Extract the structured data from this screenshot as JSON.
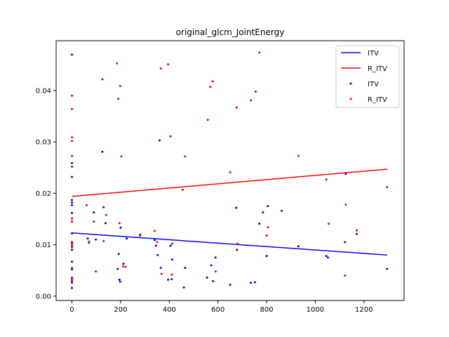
{
  "chart_data": {
    "type": "scatter",
    "title": "original_glcm_JointEnergy",
    "xlabel": "",
    "ylabel": "",
    "xlim": [
      -65,
      1365
    ],
    "ylim": [
      -0.00085,
      0.0497
    ],
    "xticks": [
      0,
      200,
      400,
      600,
      800,
      1000,
      1200
    ],
    "yticks": [
      0.0,
      0.01,
      0.02,
      0.03,
      0.04
    ],
    "ytick_labels": [
      "0.00",
      "0.01",
      "0.02",
      "0.03",
      "0.04"
    ],
    "grid": false,
    "legend_position": "top-right",
    "legend": [
      {
        "label": "ITV",
        "kind": "line",
        "color": "#0000ff"
      },
      {
        "label": "R_ITV",
        "kind": "line",
        "color": "#ff0000"
      },
      {
        "label": "ITV",
        "kind": "point",
        "color": "#0000ff"
      },
      {
        "label": "R_ITV",
        "kind": "point",
        "color": "#ff0000"
      }
    ],
    "lines": [
      {
        "name": "ITV",
        "color": "#0000ff",
        "x": [
          0,
          1295
        ],
        "y": [
          0.0123,
          0.008
        ]
      },
      {
        "name": "R_ITV",
        "color": "#ff0000",
        "x": [
          0,
          1295
        ],
        "y": [
          0.0194,
          0.0247
        ]
      }
    ],
    "series": [
      {
        "name": "ITV",
        "color": "#0000ff",
        "points": [
          [
            0,
            0.047
          ],
          [
            0,
            0.0259
          ],
          [
            0,
            0.0232
          ],
          [
            0,
            0.0187
          ],
          [
            0,
            0.0182
          ],
          [
            0,
            0.0177
          ],
          [
            0,
            0.0162
          ],
          [
            0,
            0.0145
          ],
          [
            0,
            0.0122
          ],
          [
            0,
            0.0105
          ],
          [
            0,
            0.009
          ],
          [
            0,
            0.0067
          ],
          [
            0,
            0.0052
          ],
          [
            0,
            0.0036
          ],
          [
            0,
            0.003
          ],
          [
            0,
            0.0026
          ],
          [
            0,
            0.0016
          ],
          [
            65,
            0.0112
          ],
          [
            70,
            0.0104
          ],
          [
            90,
            0.0163
          ],
          [
            98,
            0.011
          ],
          [
            125,
            0.0281
          ],
          [
            130,
            0.0173
          ],
          [
            138,
            0.0142
          ],
          [
            188,
            0.0053
          ],
          [
            192,
            0.0082
          ],
          [
            195,
            0.0032
          ],
          [
            198,
            0.0028
          ],
          [
            200,
            0.0133
          ],
          [
            212,
            0.0063
          ],
          [
            225,
            0.0112
          ],
          [
            280,
            0.0118
          ],
          [
            340,
            0.0109
          ],
          [
            345,
            0.0098
          ],
          [
            352,
            0.008
          ],
          [
            360,
            0.0303
          ],
          [
            365,
            0.0055
          ],
          [
            395,
            0.0032
          ],
          [
            405,
            0.0098
          ],
          [
            410,
            0.0033
          ],
          [
            412,
            0.0071
          ],
          [
            460,
            0.0017
          ],
          [
            465,
            0.0055
          ],
          [
            555,
            0.0036
          ],
          [
            572,
            0.006
          ],
          [
            580,
            0.0029
          ],
          [
            590,
            0.0075
          ],
          [
            650,
            0.0022
          ],
          [
            675,
            0.0172
          ],
          [
            678,
            0.009
          ],
          [
            735,
            0.0026
          ],
          [
            752,
            0.0027
          ],
          [
            770,
            0.0141
          ],
          [
            785,
            0.0163
          ],
          [
            800,
            0.0078
          ],
          [
            805,
            0.0175
          ],
          [
            862,
            0.0166
          ],
          [
            930,
            0.0097
          ],
          [
            1045,
            0.0078
          ],
          [
            1052,
            0.0075
          ],
          [
            1122,
            0.0105
          ],
          [
            1125,
            0.0238
          ],
          [
            1170,
            0.0121
          ],
          [
            1295,
            0.0053
          ]
        ]
      },
      {
        "name": "R_ITV",
        "color": "#ff0000",
        "points": [
          [
            0,
            0.039
          ],
          [
            0,
            0.0364
          ],
          [
            0,
            0.0309
          ],
          [
            0,
            0.0302
          ],
          [
            0,
            0.0273
          ],
          [
            0,
            0.0252
          ],
          [
            0,
            0.0151
          ],
          [
            0,
            0.0145
          ],
          [
            0,
            0.0102
          ],
          [
            0,
            0.0098
          ],
          [
            0,
            0.0095
          ],
          [
            0,
            0.0055
          ],
          [
            0,
            0.0035
          ],
          [
            0,
            0.0032
          ],
          [
            60,
            0.0177
          ],
          [
            70,
            0.0106
          ],
          [
            90,
            0.0145
          ],
          [
            98,
            0.0048
          ],
          [
            125,
            0.0422
          ],
          [
            130,
            0.0107
          ],
          [
            140,
            0.0158
          ],
          [
            185,
            0.0453
          ],
          [
            190,
            0.0384
          ],
          [
            195,
            0.0142
          ],
          [
            198,
            0.0409
          ],
          [
            203,
            0.0272
          ],
          [
            210,
            0.0058
          ],
          [
            220,
            0.0057
          ],
          [
            280,
            0.012
          ],
          [
            340,
            0.0127
          ],
          [
            350,
            0.0105
          ],
          [
            365,
            0.0443
          ],
          [
            368,
            0.0043
          ],
          [
            395,
            0.0451
          ],
          [
            405,
            0.0311
          ],
          [
            410,
            0.0042
          ],
          [
            412,
            0.0102
          ],
          [
            455,
            0.0207
          ],
          [
            465,
            0.0272
          ],
          [
            558,
            0.0343
          ],
          [
            568,
            0.0407
          ],
          [
            578,
            0.0418
          ],
          [
            590,
            0.0048
          ],
          [
            650,
            0.0241
          ],
          [
            677,
            0.0367
          ],
          [
            680,
            0.0102
          ],
          [
            735,
            0.0381
          ],
          [
            755,
            0.0398
          ],
          [
            770,
            0.0474
          ],
          [
            800,
            0.0118
          ],
          [
            805,
            0.0134
          ],
          [
            930,
            0.0273
          ],
          [
            1045,
            0.0227
          ],
          [
            1055,
            0.0141
          ],
          [
            1122,
            0.004
          ],
          [
            1125,
            0.0178
          ],
          [
            1170,
            0.0128
          ],
          [
            1295,
            0.0212
          ]
        ]
      }
    ]
  }
}
